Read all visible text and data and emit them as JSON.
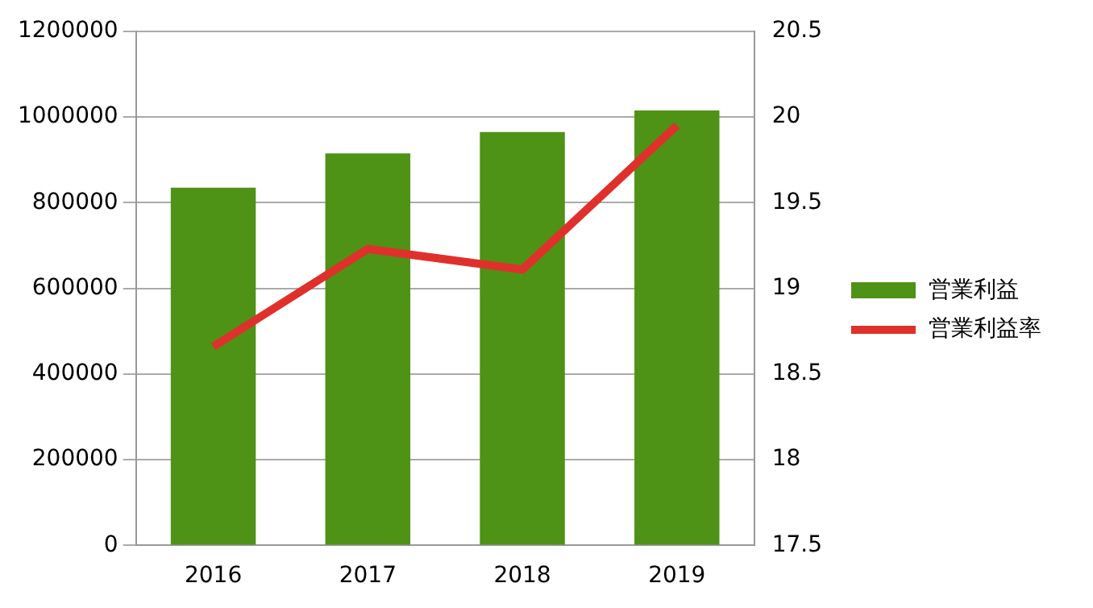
{
  "chart_data": {
    "type": "bar",
    "categories": [
      "2016",
      "2017",
      "2018",
      "2019"
    ],
    "series": [
      {
        "name": "営業利益",
        "color": "#4e9216",
        "values": [
          835000,
          915000,
          965000,
          1015000
        ]
      },
      {
        "name": "営業利益率",
        "type": "line",
        "axis": "y2",
        "color": "#e0302c",
        "values": [
          18.66,
          19.23,
          19.11,
          19.95
        ]
      }
    ],
    "ylim": [
      0,
      1200000
    ],
    "yticks": [
      0,
      200000,
      400000,
      600000,
      800000,
      1000000,
      1200000
    ],
    "y2lim": [
      17.5,
      20.5
    ],
    "y2ticks": [
      17.5,
      18,
      18.5,
      19,
      19.5,
      20,
      20.5
    ],
    "grid": "y",
    "legend": "right",
    "marker": "none"
  }
}
